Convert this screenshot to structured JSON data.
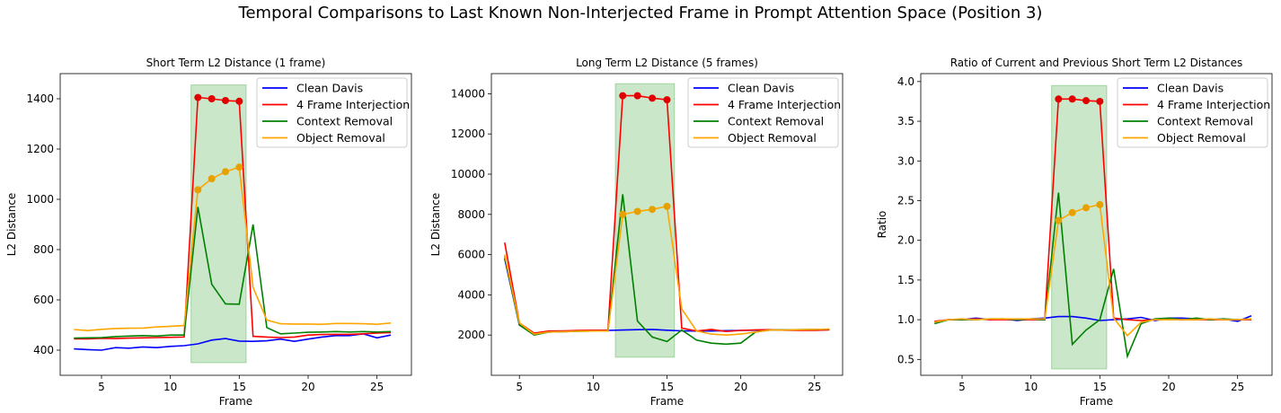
{
  "suptitle": "Temporal Comparisons to Last Known Non-Interjected Frame in Prompt Attention Space (Position 3)",
  "colors": {
    "Clean Davis": "#0000ff",
    "4 Frame Interjection": "#ff0000",
    "Context Removal": "#008000",
    "Object Removal": "#ffa500",
    "highlight": "#2ca02c"
  },
  "chart_data": [
    {
      "type": "line",
      "title": "Short Term L2 Distance (1 frame)",
      "xlabel": "Frame",
      "ylabel": "L2 Distance",
      "xlim": [
        2,
        27.5
      ],
      "ylim": [
        300,
        1500
      ],
      "xticks": [
        5,
        10,
        15,
        20,
        25
      ],
      "yticks": [
        400,
        600,
        800,
        1000,
        1200,
        1400
      ],
      "legend_position": "top-right",
      "highlight_span": [
        11.5,
        15.5
      ],
      "marker_frames": [
        12,
        13,
        14,
        15
      ],
      "x": [
        3,
        4,
        5,
        6,
        7,
        8,
        9,
        10,
        11,
        12,
        13,
        14,
        15,
        16,
        17,
        18,
        19,
        20,
        21,
        22,
        23,
        24,
        25,
        26
      ],
      "series": [
        {
          "name": "Clean Davis",
          "values": [
            405,
            402,
            400,
            410,
            408,
            413,
            410,
            415,
            418,
            425,
            440,
            446,
            436,
            435,
            437,
            444,
            435,
            444,
            452,
            458,
            458,
            465,
            449,
            460
          ]
        },
        {
          "name": "4 Frame Interjection",
          "values": [
            445,
            445,
            447,
            446,
            448,
            449,
            450,
            451,
            452,
            1405,
            1400,
            1393,
            1390,
            455,
            452,
            450,
            452,
            460,
            462,
            463,
            463,
            465,
            468,
            470
          ]
        },
        {
          "name": "Context Removal",
          "values": [
            448,
            449,
            450,
            454,
            456,
            458,
            456,
            460,
            460,
            970,
            662,
            584,
            583,
            900,
            490,
            465,
            468,
            471,
            472,
            474,
            472,
            474,
            472,
            474
          ]
        },
        {
          "name": "Object Removal",
          "values": [
            482,
            478,
            483,
            486,
            487,
            488,
            492,
            495,
            498,
            1038,
            1082,
            1110,
            1128,
            650,
            520,
            505,
            504,
            504,
            503,
            506,
            506,
            505,
            503,
            508
          ]
        }
      ]
    },
    {
      "type": "line",
      "title": "Long Term L2 Distance (5 frames)",
      "xlabel": "Frame",
      "ylabel": "L2 Distance",
      "xlim": [
        3.1,
        26.9
      ],
      "ylim": [
        0,
        15000
      ],
      "xticks": [
        5,
        10,
        15,
        20,
        25
      ],
      "yticks": [
        2000,
        4000,
        6000,
        8000,
        10000,
        12000,
        14000
      ],
      "legend_position": "top-right",
      "highlight_span": [
        11.5,
        15.5
      ],
      "marker_frames": [
        12,
        13,
        14,
        15
      ],
      "x": [
        4,
        5,
        6,
        7,
        8,
        9,
        10,
        11,
        12,
        13,
        14,
        15,
        16,
        17,
        18,
        19,
        20,
        21,
        22,
        23,
        24,
        25,
        26
      ],
      "series": [
        {
          "name": "Clean Davis",
          "values": [
            5800,
            2500,
            2050,
            2150,
            2180,
            2200,
            2220,
            2230,
            2250,
            2270,
            2280,
            2240,
            2210,
            2200,
            2200,
            2220,
            2230,
            2240,
            2250,
            2250,
            2260,
            2260,
            2270
          ]
        },
        {
          "name": "4 Frame Interjection",
          "values": [
            6600,
            2600,
            2100,
            2200,
            2210,
            2230,
            2240,
            2240,
            13900,
            13900,
            13780,
            13700,
            2350,
            2200,
            2280,
            2180,
            2230,
            2260,
            2270,
            2240,
            2230,
            2230,
            2260
          ]
        },
        {
          "name": "Context Removal",
          "values": [
            5900,
            2500,
            2000,
            2150,
            2170,
            2190,
            2200,
            2200,
            9000,
            2700,
            1900,
            1680,
            2250,
            1750,
            1600,
            1550,
            1600,
            2150,
            2250,
            2260,
            2270,
            2280,
            2290
          ]
        },
        {
          "name": "Object Removal",
          "values": [
            6000,
            2600,
            2050,
            2150,
            2170,
            2190,
            2200,
            2200,
            8000,
            8150,
            8250,
            8400,
            3300,
            2200,
            2050,
            2000,
            2050,
            2150,
            2250,
            2250,
            2270,
            2280,
            2300
          ]
        }
      ]
    },
    {
      "type": "line",
      "title": "Ratio of Current and Previous Short Term L2 Distances",
      "xlabel": "Frame",
      "ylabel": "Ratio",
      "xlim": [
        2,
        27.5
      ],
      "ylim": [
        0.3,
        4.1
      ],
      "xticks": [
        5,
        10,
        15,
        20,
        25
      ],
      "yticks": [
        0.5,
        1.0,
        1.5,
        2.0,
        2.5,
        3.0,
        3.5,
        4.0
      ],
      "legend_position": "top-right",
      "highlight_span": [
        11.5,
        15.5
      ],
      "marker_frames": [
        12,
        13,
        14,
        15
      ],
      "x": [
        3,
        4,
        5,
        6,
        7,
        8,
        9,
        10,
        11,
        12,
        13,
        14,
        15,
        16,
        17,
        18,
        19,
        20,
        21,
        22,
        23,
        24,
        25,
        26
      ],
      "series": [
        {
          "name": "Clean Davis",
          "values": [
            0.97,
            1.0,
            1.0,
            1.02,
            1.0,
            1.01,
            0.99,
            1.01,
            1.02,
            1.04,
            1.04,
            1.02,
            0.99,
            1.0,
            1.01,
            1.03,
            0.99,
            1.02,
            1.02,
            1.01,
            1.0,
            1.01,
            0.98,
            1.05
          ]
        },
        {
          "name": "4 Frame Interjection",
          "values": [
            0.98,
            1.0,
            1.0,
            1.01,
            1.0,
            1.0,
            1.0,
            1.0,
            1.0,
            3.78,
            3.78,
            3.76,
            3.75,
            1.02,
            1.0,
            0.99,
            1.0,
            1.01,
            1.0,
            1.0,
            1.0,
            1.0,
            1.0,
            1.0
          ]
        },
        {
          "name": "Context Removal",
          "values": [
            0.95,
            1.0,
            1.0,
            1.0,
            1.01,
            1.01,
            1.0,
            1.01,
            1.0,
            2.6,
            0.69,
            0.87,
            1.0,
            1.64,
            0.54,
            0.95,
            1.01,
            1.02,
            1.0,
            1.02,
            1.0,
            1.01,
            1.0,
            1.01
          ]
        },
        {
          "name": "Object Removal",
          "values": [
            0.97,
            1.0,
            1.01,
            1.0,
            1.01,
            1.01,
            1.01,
            1.01,
            1.01,
            2.25,
            2.35,
            2.41,
            2.45,
            1.02,
            0.8,
            0.97,
            1.0,
            1.0,
            1.0,
            1.0,
            1.01,
            1.0,
            1.0,
            1.01
          ]
        }
      ]
    }
  ]
}
